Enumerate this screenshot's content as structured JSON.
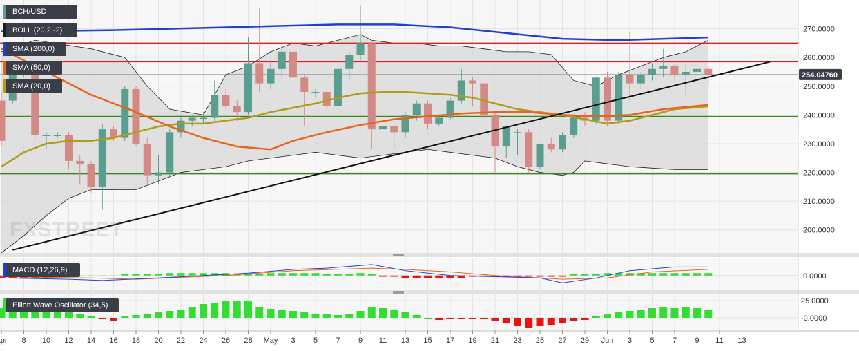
{
  "legend": {
    "symbol": "BCH/USD",
    "boll": "BOLL (20,2,-2)",
    "sma200": "SMA (200,0)",
    "sma50": "SMA (50,0)",
    "sma20": "SMA (20,0)",
    "macd": "MACD (12,26,9)",
    "ewo": "Elliott Wave Oscillator (34,5)"
  },
  "watermark": "FXSTREET",
  "current_price": "254.04760",
  "colors": {
    "bull": "#5a9e8f",
    "bear": "#d48a84",
    "sma200": "#1f3fd6",
    "sma50": "#e8641b",
    "sma20": "#b39b1a",
    "red_lines": "#e02020",
    "green_lines": "#3a8a1a",
    "trendline": "#111111",
    "boll_fill": "#dcdcdc",
    "ewo_pos": "#33dd33",
    "ewo_neg": "#ee1111",
    "price_label_bg": "#3a3f47"
  },
  "chart_data": [
    {
      "type": "candlestick",
      "series_name": "BCH/USD",
      "x_tick_labels": [
        "Apr",
        "8",
        "10",
        "12",
        "14",
        "16",
        "18",
        "20",
        "22",
        "24",
        "26",
        "28",
        "May",
        "3",
        "5",
        "7",
        "9",
        "11",
        "13",
        "15",
        "17",
        "19",
        "21",
        "23",
        "25",
        "27",
        "29",
        "Jun",
        "3",
        "5",
        "7",
        "9",
        "11",
        "13"
      ],
      "y_ticks": [
        200,
        210,
        220,
        230,
        240,
        250,
        260,
        270
      ],
      "ylim": [
        192,
        280
      ],
      "candles": [
        {
          "date": "Apr 7",
          "o": 245,
          "h": 248,
          "l": 229,
          "c": 231
        },
        {
          "date": "Apr 8",
          "o": 245,
          "h": 257,
          "l": 244,
          "c": 256
        },
        {
          "date": "Apr 9",
          "o": 256,
          "h": 259,
          "l": 253,
          "c": 255
        },
        {
          "date": "Apr 10",
          "o": 255,
          "h": 256,
          "l": 231,
          "c": 233
        },
        {
          "date": "Apr 11",
          "o": 233,
          "h": 234,
          "l": 228,
          "c": 233
        },
        {
          "date": "Apr 12",
          "o": 233,
          "h": 234,
          "l": 232,
          "c": 233
        },
        {
          "date": "Apr 13",
          "o": 233,
          "h": 234,
          "l": 221,
          "c": 224
        },
        {
          "date": "Apr 14",
          "o": 224,
          "h": 226,
          "l": 216,
          "c": 223
        },
        {
          "date": "Apr 15",
          "o": 223,
          "h": 224,
          "l": 213,
          "c": 215
        },
        {
          "date": "Apr 16",
          "o": 215,
          "h": 237,
          "l": 207,
          "c": 235
        },
        {
          "date": "Apr 17",
          "o": 235,
          "h": 236,
          "l": 231,
          "c": 232
        },
        {
          "date": "Apr 18",
          "o": 232,
          "h": 250,
          "l": 231,
          "c": 249
        },
        {
          "date": "Apr 19",
          "o": 249,
          "h": 250,
          "l": 229,
          "c": 230
        },
        {
          "date": "Apr 20",
          "o": 230,
          "h": 232,
          "l": 216,
          "c": 219
        },
        {
          "date": "Apr 21",
          "o": 219,
          "h": 226,
          "l": 216,
          "c": 220
        },
        {
          "date": "Apr 22",
          "o": 220,
          "h": 235,
          "l": 218,
          "c": 234
        },
        {
          "date": "Apr 23",
          "o": 234,
          "h": 240,
          "l": 232,
          "c": 238
        },
        {
          "date": "Apr 24",
          "o": 238,
          "h": 240,
          "l": 236,
          "c": 239
        },
        {
          "date": "Apr 25",
          "o": 239,
          "h": 241,
          "l": 237,
          "c": 239
        },
        {
          "date": "Apr 26",
          "o": 239,
          "h": 252,
          "l": 238,
          "c": 247
        },
        {
          "date": "Apr 27",
          "o": 247,
          "h": 249,
          "l": 242,
          "c": 243
        },
        {
          "date": "Apr 28",
          "o": 243,
          "h": 245,
          "l": 238,
          "c": 241
        },
        {
          "date": "Apr 29",
          "o": 241,
          "h": 267,
          "l": 240,
          "c": 258
        },
        {
          "date": "Apr 30",
          "o": 258,
          "h": 277,
          "l": 248,
          "c": 251
        },
        {
          "date": "May 1",
          "o": 251,
          "h": 259,
          "l": 249,
          "c": 256
        },
        {
          "date": "May 2",
          "o": 256,
          "h": 265,
          "l": 253,
          "c": 262
        },
        {
          "date": "May 3",
          "o": 262,
          "h": 265,
          "l": 248,
          "c": 253
        },
        {
          "date": "May 4",
          "o": 253,
          "h": 254,
          "l": 236,
          "c": 248
        },
        {
          "date": "May 5",
          "o": 248,
          "h": 249,
          "l": 246,
          "c": 248
        },
        {
          "date": "May 6",
          "o": 248,
          "h": 249,
          "l": 242,
          "c": 243
        },
        {
          "date": "May 7",
          "o": 243,
          "h": 258,
          "l": 242,
          "c": 256
        },
        {
          "date": "May 8",
          "o": 256,
          "h": 262,
          "l": 252,
          "c": 261
        },
        {
          "date": "May 9",
          "o": 261,
          "h": 278,
          "l": 259,
          "c": 265
        },
        {
          "date": "May 10",
          "o": 265,
          "h": 266,
          "l": 228,
          "c": 235
        },
        {
          "date": "May 11",
          "o": 235,
          "h": 237,
          "l": 218,
          "c": 236
        },
        {
          "date": "May 12",
          "o": 236,
          "h": 237,
          "l": 228,
          "c": 234
        },
        {
          "date": "May 13",
          "o": 234,
          "h": 241,
          "l": 232,
          "c": 240
        },
        {
          "date": "May 14",
          "o": 240,
          "h": 245,
          "l": 238,
          "c": 244
        },
        {
          "date": "May 15",
          "o": 244,
          "h": 245,
          "l": 235,
          "c": 237
        },
        {
          "date": "May 16",
          "o": 237,
          "h": 240,
          "l": 236,
          "c": 239
        },
        {
          "date": "May 17",
          "o": 239,
          "h": 246,
          "l": 238,
          "c": 245
        },
        {
          "date": "May 18",
          "o": 245,
          "h": 256,
          "l": 244,
          "c": 252
        },
        {
          "date": "May 19",
          "o": 252,
          "h": 253,
          "l": 243,
          "c": 251
        },
        {
          "date": "May 20",
          "o": 251,
          "h": 251,
          "l": 239,
          "c": 240
        },
        {
          "date": "May 21",
          "o": 240,
          "h": 241,
          "l": 220,
          "c": 229
        },
        {
          "date": "May 22",
          "o": 229,
          "h": 236,
          "l": 225,
          "c": 236
        },
        {
          "date": "May 23",
          "o": 234,
          "h": 235,
          "l": 226,
          "c": 234
        },
        {
          "date": "May 24",
          "o": 234,
          "h": 235,
          "l": 220,
          "c": 222
        },
        {
          "date": "May 25",
          "o": 222,
          "h": 230,
          "l": 221,
          "c": 230
        },
        {
          "date": "May 26",
          "o": 230,
          "h": 232,
          "l": 227,
          "c": 228
        },
        {
          "date": "May 27",
          "o": 228,
          "h": 234,
          "l": 227,
          "c": 233
        },
        {
          "date": "May 28",
          "o": 233,
          "h": 240,
          "l": 232,
          "c": 239
        },
        {
          "date": "May 29",
          "o": 239,
          "h": 241,
          "l": 236,
          "c": 238
        },
        {
          "date": "May 30",
          "o": 238,
          "h": 253,
          "l": 237,
          "c": 253
        },
        {
          "date": "May 31",
          "o": 253,
          "h": 255,
          "l": 236,
          "c": 238
        },
        {
          "date": "Jun 1",
          "o": 238,
          "h": 255,
          "l": 237,
          "c": 254
        },
        {
          "date": "Jun 2",
          "o": 254,
          "h": 269,
          "l": 245,
          "c": 251
        },
        {
          "date": "Jun 3",
          "o": 251,
          "h": 255,
          "l": 249,
          "c": 254
        },
        {
          "date": "Jun 4",
          "o": 254,
          "h": 258,
          "l": 252,
          "c": 256
        },
        {
          "date": "Jun 5",
          "o": 256,
          "h": 263,
          "l": 253,
          "c": 257
        },
        {
          "date": "Jun 6",
          "o": 257,
          "h": 258,
          "l": 252,
          "c": 254
        },
        {
          "date": "Jun 7",
          "o": 254,
          "h": 258,
          "l": 246,
          "c": 255
        },
        {
          "date": "Jun 8",
          "o": 255,
          "h": 257,
          "l": 253,
          "c": 256
        },
        {
          "date": "Jun 9",
          "o": 256,
          "h": 257,
          "l": 250,
          "c": 254
        }
      ],
      "sma200": [
        [
          0,
          269
        ],
        [
          10,
          269.5
        ],
        [
          20,
          270.5
        ],
        [
          30,
          271.5
        ],
        [
          35,
          271.5
        ],
        [
          40,
          270.5
        ],
        [
          45,
          268.5
        ],
        [
          50,
          266.5
        ],
        [
          55,
          266
        ],
        [
          63,
          267
        ]
      ],
      "sma50": [
        [
          0,
          263
        ],
        [
          4,
          255
        ],
        [
          8,
          247
        ],
        [
          12,
          241
        ],
        [
          15,
          236
        ],
        [
          18,
          232
        ],
        [
          21,
          229
        ],
        [
          24,
          228
        ],
        [
          26,
          231
        ],
        [
          29,
          234
        ],
        [
          32,
          236.5
        ],
        [
          35,
          238.5
        ],
        [
          38,
          239.5
        ],
        [
          41,
          240.5
        ],
        [
          44,
          241
        ],
        [
          47,
          241
        ],
        [
          50,
          240
        ],
        [
          53,
          239.5
        ],
        [
          56,
          240
        ],
        [
          59,
          242
        ],
        [
          63,
          243.5
        ]
      ],
      "sma20": [
        [
          0,
          222
        ],
        [
          2,
          227
        ],
        [
          4,
          230
        ],
        [
          6,
          231
        ],
        [
          8,
          231
        ],
        [
          10,
          232
        ],
        [
          12,
          234
        ],
        [
          14,
          236
        ],
        [
          16,
          237
        ],
        [
          18,
          237
        ],
        [
          20,
          238
        ],
        [
          22,
          239
        ],
        [
          24,
          241
        ],
        [
          26,
          242.5
        ],
        [
          28,
          244
        ],
        [
          30,
          246
        ],
        [
          32,
          247.5
        ],
        [
          34,
          248
        ],
        [
          36,
          248
        ],
        [
          38,
          247.5
        ],
        [
          40,
          247
        ],
        [
          42,
          246
        ],
        [
          44,
          244
        ],
        [
          46,
          242
        ],
        [
          48,
          241
        ],
        [
          50,
          240
        ],
        [
          52,
          238.5
        ],
        [
          54,
          237
        ],
        [
          56,
          238
        ],
        [
          58,
          240
        ],
        [
          60,
          242
        ],
        [
          63,
          243
        ]
      ],
      "boll_upper": [
        [
          0,
          262
        ],
        [
          3,
          266
        ],
        [
          8,
          263
        ],
        [
          11,
          260
        ],
        [
          13,
          250
        ],
        [
          15,
          242
        ],
        [
          18,
          240
        ],
        [
          20,
          254
        ],
        [
          22,
          257
        ],
        [
          24,
          262
        ],
        [
          26,
          265
        ],
        [
          28,
          264
        ],
        [
          30,
          266
        ],
        [
          32,
          268
        ],
        [
          33,
          266
        ],
        [
          35,
          265
        ],
        [
          37,
          265
        ],
        [
          39,
          264
        ],
        [
          41,
          264
        ],
        [
          43,
          263
        ],
        [
          45,
          262
        ],
        [
          47,
          262
        ],
        [
          49,
          261
        ],
        [
          51,
          252
        ],
        [
          53,
          250
        ],
        [
          55,
          254
        ],
        [
          57,
          257
        ],
        [
          59,
          260
        ],
        [
          61,
          262
        ],
        [
          63,
          266
        ]
      ],
      "boll_lower": [
        [
          0,
          192
        ],
        [
          2,
          198
        ],
        [
          4,
          205
        ],
        [
          6,
          211
        ],
        [
          8,
          214
        ],
        [
          10,
          214
        ],
        [
          12,
          214
        ],
        [
          14,
          217
        ],
        [
          16,
          220
        ],
        [
          18,
          221
        ],
        [
          20,
          222
        ],
        [
          22,
          224
        ],
        [
          24,
          225
        ],
        [
          26,
          226
        ],
        [
          28,
          227
        ],
        [
          30,
          226
        ],
        [
          32,
          225
        ],
        [
          34,
          226
        ],
        [
          36,
          227
        ],
        [
          38,
          228
        ],
        [
          40,
          227
        ],
        [
          42,
          226
        ],
        [
          44,
          225
        ],
        [
          46,
          222
        ],
        [
          48,
          220
        ],
        [
          50,
          219
        ],
        [
          51,
          220
        ],
        [
          52,
          224
        ],
        [
          54,
          223
        ],
        [
          56,
          222
        ],
        [
          58,
          221.5
        ],
        [
          60,
          221
        ],
        [
          63,
          221
        ]
      ],
      "trendline": {
        "from": [
          1,
          193
        ],
        "to": [
          68.5,
          258.5
        ]
      },
      "horizontal_lines_red": [
        265,
        258.5
      ],
      "horizontal_lines_green": [
        239.5,
        219.5
      ],
      "reference_line": 254.05
    },
    {
      "type": "line",
      "series_name": "MACD (12,26,9)",
      "y_ticks": [
        0
      ],
      "ylim": [
        -6,
        7
      ],
      "macd_line": [
        [
          0,
          -1
        ],
        [
          6,
          -1.5
        ],
        [
          9,
          -2
        ],
        [
          14,
          -1
        ],
        [
          22,
          1
        ],
        [
          26,
          2.5
        ],
        [
          29,
          3
        ],
        [
          33,
          4.5
        ],
        [
          36,
          2
        ],
        [
          40,
          0
        ],
        [
          44,
          -0.5
        ],
        [
          48,
          -1
        ],
        [
          50,
          -3
        ],
        [
          53,
          -1
        ],
        [
          56,
          2
        ],
        [
          60,
          3.5
        ],
        [
          63,
          3.5
        ]
      ],
      "signal_line": [
        [
          0,
          -0.5
        ],
        [
          8,
          -1
        ],
        [
          12,
          -1.5
        ],
        [
          20,
          0
        ],
        [
          26,
          2
        ],
        [
          33,
          3
        ],
        [
          36,
          2.5
        ],
        [
          40,
          1.5
        ],
        [
          44,
          0
        ],
        [
          50,
          -1.5
        ],
        [
          54,
          -1
        ],
        [
          58,
          1.5
        ],
        [
          63,
          2.5
        ]
      ],
      "histogram": [
        -1,
        -1,
        -1,
        -1,
        -1,
        -0.5,
        -0.5,
        0,
        0,
        0,
        0,
        0.5,
        0.5,
        0.5,
        0.5,
        1,
        1,
        1,
        1,
        1,
        1,
        0.5,
        0.5,
        0.5,
        1,
        1,
        1,
        1,
        1,
        0.5,
        0.5,
        0.5,
        1,
        0.5,
        -0.5,
        -0.5,
        -1,
        -1,
        -1,
        -1,
        -1,
        -1,
        -0.5,
        -0.5,
        -0.5,
        -0.5,
        -0.5,
        -0.5,
        -0.5,
        -0.5,
        -0.5,
        0.5,
        0.5,
        0.5,
        1,
        1,
        1,
        1,
        1,
        1,
        1,
        1,
        1,
        1
      ]
    },
    {
      "type": "bar",
      "series_name": "Elliott Wave Oscillator (34,5)",
      "y_ticks": [
        0,
        25
      ],
      "ylim": [
        -18,
        34
      ],
      "values": [
        14,
        16,
        18,
        22,
        18,
        12,
        10,
        6,
        2,
        -2,
        -5,
        2,
        4,
        6,
        8,
        10,
        12,
        16,
        20,
        22,
        24,
        25,
        24,
        15,
        13,
        12,
        10,
        8,
        6,
        5,
        4,
        6,
        10,
        15,
        14,
        12,
        8,
        4,
        0,
        -3,
        -2,
        -1,
        -1,
        -2,
        -4,
        -8,
        -12,
        -14,
        -12,
        -10,
        -8,
        -5,
        -3,
        2,
        5,
        8,
        10,
        12,
        14,
        15,
        14,
        15,
        14,
        12
      ]
    }
  ]
}
